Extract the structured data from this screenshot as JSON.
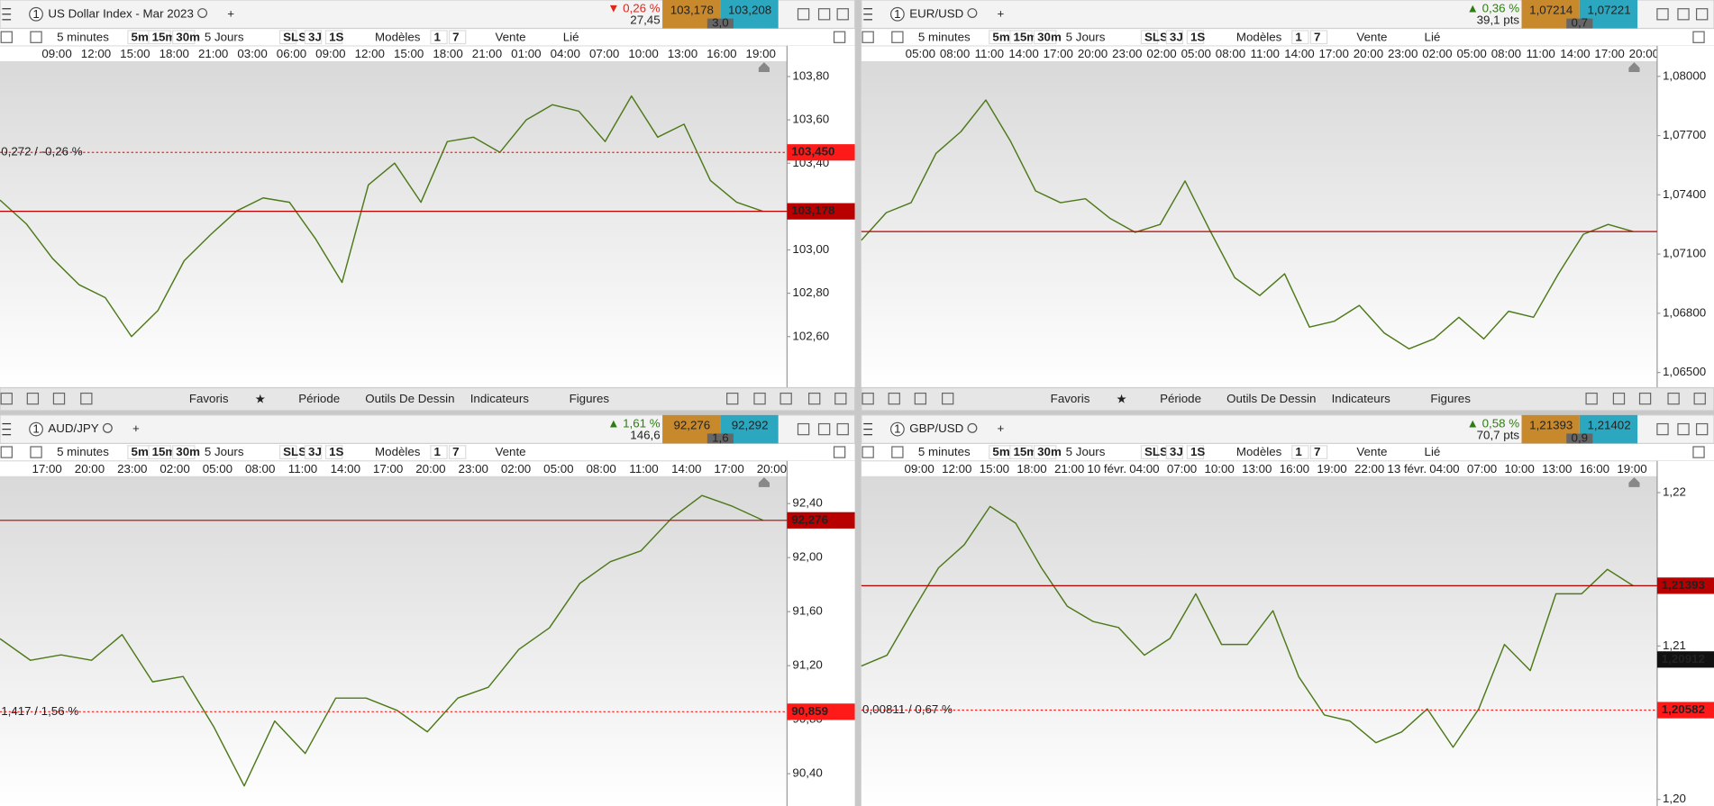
{
  "middle_toolbar": [
    "Favoris",
    "Période",
    "Outils De Dessin",
    "Indicateurs",
    "Figures"
  ],
  "panels": [
    {
      "window": "1",
      "title": "US Dollar Index - Mar 2023",
      "direction": "down",
      "arrow": "▼",
      "change_pct": "0,26 %",
      "change": "27,45",
      "bid": "103,178",
      "ask": "103,208",
      "spread": "3,0",
      "toolbar": [
        "5 minutes",
        "5m",
        "15m",
        "30m",
        "5 Jours",
        "SLS",
        "3J",
        "1S",
        "Modèles",
        "1",
        "7",
        "Vente",
        "Lié"
      ],
      "times": [
        "09:00",
        "12:00",
        "15:00",
        "18:00",
        "21:00",
        "03:00",
        "06:00",
        "09:00",
        "12:00",
        "15:00",
        "18:00",
        "21:00",
        "01:00",
        "04:00",
        "07:00",
        "10:00",
        "13:00",
        "16:00",
        "19:00"
      ],
      "ylim": [
        102.364,
        103.871
      ],
      "yticks": [
        {
          "value": 103.8,
          "label": "103,80"
        },
        {
          "value": 103.6,
          "label": "103,60"
        },
        {
          "value": 103.4,
          "label": "103,40"
        },
        {
          "value": 103.0,
          "label": "103,00"
        },
        {
          "value": 102.8,
          "label": "102,80"
        },
        {
          "value": 102.6,
          "label": "102,60"
        }
      ],
      "last": {
        "value": 103.178,
        "label": "103,178"
      },
      "ref": {
        "value": 103.45,
        "label": "103,450",
        "text": "0,272 / -0,26 %"
      },
      "prices": [
        103.23,
        103.12,
        102.96,
        102.84,
        102.78,
        102.6,
        102.72,
        102.95,
        103.07,
        103.18,
        103.24,
        103.22,
        103.05,
        102.85,
        103.3,
        103.4,
        103.22,
        103.5,
        103.52,
        103.45,
        103.6,
        103.67,
        103.64,
        103.5,
        103.71,
        103.52,
        103.58,
        103.32,
        103.22,
        103.178
      ]
    },
    {
      "window": "1",
      "title": "EUR/USD",
      "direction": "up",
      "arrow": "▲",
      "change_pct": "0,36 %",
      "change": "39,1 pts",
      "bid": "1,07214",
      "ask": "1,07221",
      "spread": "0,7",
      "toolbar": [
        "5 minutes",
        "5m",
        "15m",
        "30m",
        "5 Jours",
        "SLS",
        "3J",
        "1S",
        "Modèles",
        "1",
        "7",
        "Vente",
        "Lié"
      ],
      "times": [
        "05:00",
        "08:00",
        "11:00",
        "14:00",
        "17:00",
        "20:00",
        "23:00",
        "02:00",
        "05:00",
        "08:00",
        "11:00",
        "14:00",
        "17:00",
        "20:00",
        "23:00",
        "02:00",
        "05:00",
        "08:00",
        "11:00",
        "14:00",
        "17:00",
        "20:00"
      ],
      "ylim": [
        1.06423,
        1.08077
      ],
      "yticks": [
        {
          "value": 1.08,
          "label": "1,08000"
        },
        {
          "value": 1.077,
          "label": "1,07700"
        },
        {
          "value": 1.074,
          "label": "1,07400"
        },
        {
          "value": 1.071,
          "label": "1,07100"
        },
        {
          "value": 1.068,
          "label": "1,06800"
        },
        {
          "value": 1.065,
          "label": "1,06500"
        }
      ],
      "last": {
        "value": 1.07214
      },
      "prices": [
        1.0717,
        1.0731,
        1.0736,
        1.0761,
        1.0772,
        1.0788,
        1.0767,
        1.0742,
        1.0736,
        1.0738,
        1.0728,
        1.0721,
        1.0725,
        1.0747,
        1.0722,
        1.0698,
        1.0689,
        1.07,
        1.0673,
        1.0676,
        1.0684,
        1.067,
        1.0662,
        1.0667,
        1.0678,
        1.0667,
        1.0681,
        1.0678,
        1.07,
        1.072,
        1.0725,
        1.07214
      ]
    },
    {
      "window": "1",
      "title": "AUD/JPY",
      "direction": "up",
      "arrow": "▲",
      "change_pct": "1,61 %",
      "change": "146,6",
      "bid": "92,276",
      "ask": "92,292",
      "spread": "1,6",
      "toolbar": [
        "5 minutes",
        "5m",
        "15m",
        "30m",
        "5 Jours",
        "SLS",
        "3J",
        "1S",
        "Modèles",
        "1",
        "7",
        "Vente"
      ],
      "times": [
        "17:00",
        "20:00",
        "23:00",
        "02:00",
        "05:00",
        "08:00",
        "11:00",
        "14:00",
        "17:00",
        "20:00",
        "23:00",
        "02:00",
        "05:00",
        "08:00",
        "11:00",
        "14:00",
        "17:00",
        "20:00"
      ],
      "ylim": [
        90.161,
        92.603
      ],
      "yticks": [
        {
          "value": 92.4,
          "label": "92,40"
        },
        {
          "value": 92.0,
          "label": "92,00"
        },
        {
          "value": 91.6,
          "label": "91,60"
        },
        {
          "value": 91.2,
          "label": "91,20"
        },
        {
          "value": 90.8,
          "label": "90,80"
        },
        {
          "value": 90.4,
          "label": "90,40"
        }
      ],
      "last": {
        "value": 92.276,
        "label": "92,276"
      },
      "ref": {
        "value": 90.859,
        "label": "90,859",
        "text": "1,417 / 1,56 %"
      },
      "prices": [
        91.4,
        91.24,
        91.28,
        91.24,
        91.43,
        91.08,
        91.12,
        90.75,
        90.31,
        90.79,
        90.55,
        90.96,
        90.96,
        90.87,
        90.71,
        90.96,
        91.04,
        91.32,
        91.48,
        91.81,
        91.97,
        92.05,
        92.29,
        92.46,
        92.38,
        92.276
      ]
    },
    {
      "window": "1",
      "title": "GBP/USD",
      "direction": "up",
      "arrow": "▲",
      "change_pct": "0,58 %",
      "change": "70,7 pts",
      "bid": "1,21393",
      "ask": "1,21402",
      "spread": "0,9",
      "toolbar": [
        "5 minutes",
        "5m",
        "15m",
        "30m",
        "5 Jours",
        "SLS",
        "3J",
        "1S",
        "Modèles",
        "1",
        "7",
        "Vente",
        "Lié"
      ],
      "times": [
        "09:00",
        "12:00",
        "15:00",
        "18:00",
        "21:00",
        "10 févr.",
        "04:00",
        "07:00",
        "10:00",
        "13:00",
        "16:00",
        "19:00",
        "22:00",
        "13 févr.",
        "04:00",
        "07:00",
        "10:00",
        "13:00",
        "16:00",
        "19:00"
      ],
      "ylim": [
        1.19957,
        1.22107
      ],
      "yticks": [
        {
          "value": 1.22,
          "label": "1,22"
        },
        {
          "value": 1.21,
          "label": "1,21"
        },
        {
          "value": 1.2,
          "label": "1,20"
        }
      ],
      "last": {
        "value": 1.21393,
        "label": "1,21393"
      },
      "marker": {
        "value": 1.20912,
        "label": "1,20912"
      },
      "ref": {
        "value": 1.20582,
        "label": "1,20582",
        "text": "0,00811 / 0,67 %"
      },
      "prices": [
        1.2087,
        1.2094,
        1.2123,
        1.2151,
        1.2166,
        1.2191,
        1.218,
        1.2151,
        1.2126,
        1.2116,
        1.2112,
        1.2094,
        1.2105,
        1.2134,
        1.2101,
        1.2101,
        1.2123,
        1.208,
        1.2055,
        1.2051,
        1.2037,
        1.2044,
        1.2059,
        1.2034,
        1.2059,
        1.2101,
        1.2084,
        1.2134,
        1.2134,
        1.215,
        1.21393
      ]
    }
  ]
}
